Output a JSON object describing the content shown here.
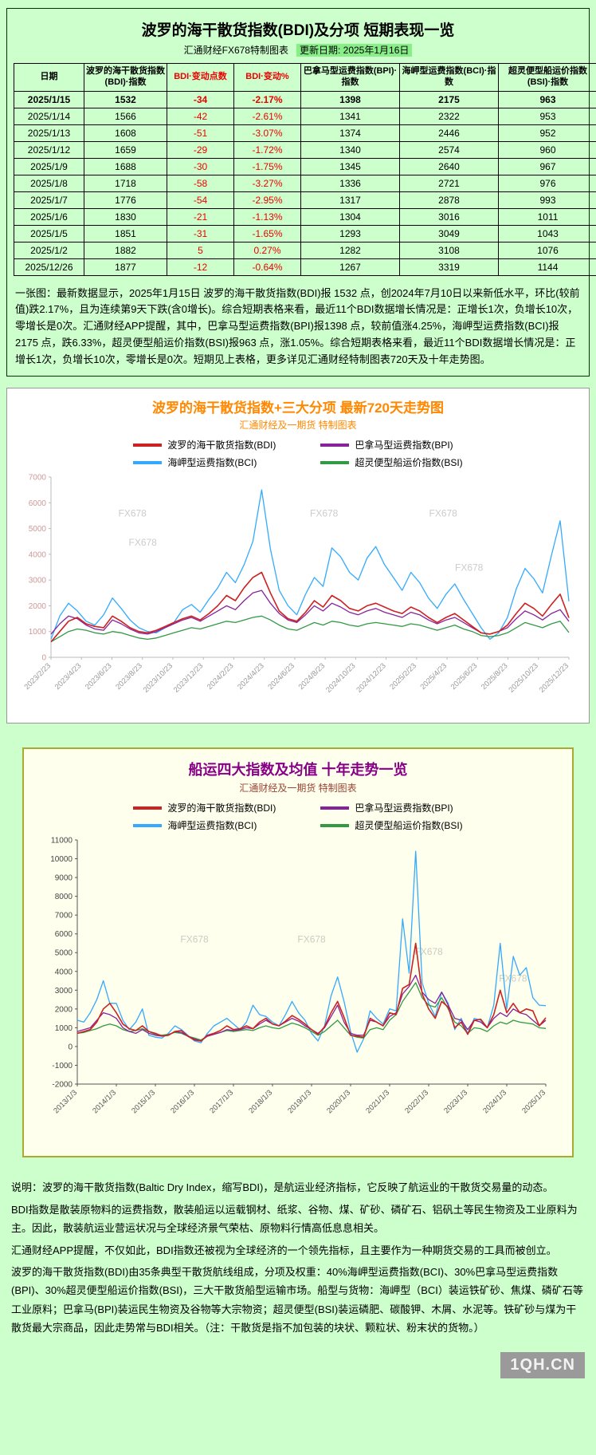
{
  "colors": {
    "page_bg": "#ccffcc",
    "negative_red": "#ee0000",
    "update_highlight": "#88ee88",
    "bdi_line": "#cc2222",
    "bpi_line": "#882299",
    "bci_line": "#33aaff",
    "bsi_line": "#339944",
    "chart1_title": "#ff8800",
    "chart2_title": "#880088",
    "chart2_subtitle": "#994433",
    "panel2_border": "#aaaa33",
    "panel2_bg": "#ffffee"
  },
  "top_panel": {
    "title": "波罗的海干散货指数(BDI)及分项 短期表现一览",
    "source": "汇通财经FX678特制图表",
    "update_date": "更新日期: 2025年1月16日",
    "table": {
      "headers": [
        "日期",
        "波罗的海干散货指数(BDI)·指数",
        "BDI·变动点数",
        "BDI·变动%",
        "巴拿马型运费指数(BPI)·指数",
        "海岬型运费指数(BCI)·指数",
        "超灵便型船运价指数(BSI)·指数"
      ],
      "rows": [
        [
          "2025/1/15",
          "1532",
          "-34",
          "-2.17%",
          "1398",
          "2175",
          "963"
        ],
        [
          "2025/1/14",
          "1566",
          "-42",
          "-2.61%",
          "1341",
          "2322",
          "953"
        ],
        [
          "2025/1/13",
          "1608",
          "-51",
          "-3.07%",
          "1374",
          "2446",
          "952"
        ],
        [
          "2025/1/12",
          "1659",
          "-29",
          "-1.72%",
          "1340",
          "2574",
          "960"
        ],
        [
          "2025/1/9",
          "1688",
          "-30",
          "-1.75%",
          "1345",
          "2640",
          "967"
        ],
        [
          "2025/1/8",
          "1718",
          "-58",
          "-3.27%",
          "1336",
          "2721",
          "976"
        ],
        [
          "2025/1/7",
          "1776",
          "-54",
          "-2.95%",
          "1317",
          "2878",
          "993"
        ],
        [
          "2025/1/6",
          "1830",
          "-21",
          "-1.13%",
          "1304",
          "3016",
          "1011"
        ],
        [
          "2025/1/5",
          "1851",
          "-31",
          "-1.65%",
          "1293",
          "3049",
          "1043"
        ],
        [
          "2025/1/2",
          "1882",
          "5",
          "0.27%",
          "1282",
          "3108",
          "1076"
        ],
        [
          "2025/12/26",
          "1877",
          "-12",
          "-0.64%",
          "1267",
          "3319",
          "1144"
        ]
      ]
    },
    "summary": "一张图：最新数据显示，2025年1月15日 波罗的海干散货指数(BDI)报 1532 点，创2024年7月10日以来新低水平，环比(较前值)跌2.17%，且为连续第9天下跌(含0增长)。综合短期表格来看，最近11个BDI数据增长情况是：正增长1次，负增长10次，零增长是0次。汇通财经APP提醒，其中，巴拿马型运费指数(BPI)报1398 点，较前值涨4.25%，海岬型运费指数(BCI)报2175 点，跌6.33%，超灵便型船运价指数(BSI)报963 点，涨1.05%。综合短期表格来看，最近11个BDI数据增长情况是：正增长1次，负增长10次，零增长是0次。短期见上表格，更多详见汇通财经特制图表720天及十年走势图。"
  },
  "chart_data": [
    {
      "type": "line",
      "title": "波罗的海干散货指数+三大分项  最新720天走势图",
      "subtitle": "汇通财经及一期货 特制图表",
      "xlabel": "",
      "ylabel": "",
      "ylim": [
        0,
        7000
      ],
      "ytick_step": 1000,
      "grid": false,
      "legend_position": "top",
      "watermark_text": "FX678",
      "watermarks": [
        {
          "x": 0.13,
          "y": 0.22
        },
        {
          "x": 0.5,
          "y": 0.22
        },
        {
          "x": 0.73,
          "y": 0.22
        },
        {
          "x": 0.15,
          "y": 0.38
        },
        {
          "x": 0.78,
          "y": 0.52
        }
      ],
      "x_labels": [
        "2023/2/23",
        "2023/4/23",
        "2023/6/23",
        "2023/8/23",
        "2023/10/23",
        "2023/12/23",
        "2024/2/23",
        "2024/4/23",
        "2024/6/23",
        "2024/8/23",
        "2024/10/23",
        "2024/12/23",
        "2025/2/23",
        "2025/4/23",
        "2025/6/23",
        "2025/8/23",
        "2025/10/23",
        "2025/12/23"
      ],
      "series": [
        {
          "name": "波罗的海干散货指数(BDI)",
          "color": "#cc2222",
          "values": [
            600,
            1000,
            1400,
            1550,
            1300,
            1200,
            1150,
            1600,
            1400,
            1150,
            1000,
            950,
            1050,
            1200,
            1350,
            1500,
            1600,
            1450,
            1700,
            2000,
            2400,
            2200,
            2700,
            3100,
            3300,
            2500,
            1800,
            1500,
            1400,
            1750,
            2200,
            1950,
            2400,
            2200,
            1900,
            1800,
            2000,
            2100,
            1950,
            1800,
            1700,
            1950,
            1800,
            1550,
            1350,
            1550,
            1700,
            1450,
            1200,
            950,
            900,
            1000,
            1250,
            1700,
            2100,
            1900,
            1600,
            2050,
            2450,
            1532
          ]
        },
        {
          "name": "巴拿马型运费指数(BPI)",
          "color": "#882299",
          "values": [
            900,
            1300,
            1600,
            1500,
            1250,
            1100,
            1050,
            1450,
            1300,
            1100,
            950,
            900,
            1000,
            1150,
            1300,
            1450,
            1550,
            1400,
            1600,
            1800,
            2000,
            1850,
            2200,
            2500,
            2600,
            2100,
            1700,
            1450,
            1350,
            1650,
            2000,
            1800,
            2100,
            1950,
            1750,
            1650,
            1800,
            1900,
            1750,
            1650,
            1550,
            1750,
            1650,
            1450,
            1300,
            1450,
            1550,
            1350,
            1150,
            950,
            900,
            1000,
            1150,
            1500,
            1800,
            1650,
            1450,
            1700,
            1850,
            1398
          ]
        },
        {
          "name": "海岬型运费指数(BCI)",
          "color": "#33aaff",
          "values": [
            700,
            1600,
            2100,
            1800,
            1400,
            1250,
            1650,
            2300,
            1900,
            1450,
            1150,
            1000,
            950,
            1150,
            1350,
            1850,
            2050,
            1750,
            2250,
            2700,
            3300,
            2900,
            3600,
            4500,
            6500,
            4200,
            2600,
            2000,
            1650,
            2450,
            3100,
            2750,
            4250,
            3900,
            3300,
            3000,
            3850,
            4300,
            3600,
            3100,
            2600,
            3300,
            2900,
            2300,
            1900,
            2450,
            2850,
            2250,
            1700,
            1150,
            700,
            950,
            1550,
            2650,
            3450,
            3050,
            2500,
            3950,
            5300,
            2175
          ]
        },
        {
          "name": "超灵便型船运价指数(BSI)",
          "color": "#339944",
          "values": [
            600,
            800,
            1000,
            1100,
            1050,
            950,
            900,
            1000,
            950,
            850,
            750,
            700,
            750,
            850,
            950,
            1050,
            1150,
            1100,
            1200,
            1300,
            1400,
            1350,
            1450,
            1550,
            1600,
            1450,
            1250,
            1100,
            1050,
            1200,
            1350,
            1250,
            1400,
            1350,
            1250,
            1200,
            1300,
            1350,
            1300,
            1250,
            1200,
            1300,
            1250,
            1150,
            1050,
            1150,
            1250,
            1100,
            1000,
            850,
            800,
            850,
            950,
            1150,
            1350,
            1250,
            1150,
            1300,
            1400,
            963
          ]
        }
      ]
    },
    {
      "type": "line",
      "title": "船运四大指数及均值 十年走势一览",
      "subtitle": "汇通财经及一期货 特制图表",
      "xlabel": "",
      "ylabel": "",
      "ylim": [
        -2000,
        11000
      ],
      "ytick_step": 1000,
      "grid": false,
      "legend_position": "top",
      "watermark_text": "FX678",
      "watermarks": [
        {
          "x": 0.22,
          "y": 0.42
        },
        {
          "x": 0.47,
          "y": 0.42
        },
        {
          "x": 0.72,
          "y": 0.47
        },
        {
          "x": 0.9,
          "y": 0.58
        }
      ],
      "x_labels": [
        "2013/1/3",
        "2014/1/3",
        "2015/1/3",
        "2016/1/3",
        "2017/1/3",
        "2018/1/3",
        "2019/1/3",
        "2020/1/3",
        "2021/1/3",
        "2022/1/3",
        "2023/1/3",
        "2024/1/3",
        "2025/1/3"
      ],
      "series": [
        {
          "name": "波罗的海干散货指数(BDI)",
          "color": "#cc2222",
          "values": [
            700,
            800,
            900,
            1300,
            2000,
            2300,
            1800,
            1200,
            950,
            850,
            1100,
            800,
            700,
            560,
            600,
            800,
            850,
            550,
            350,
            290,
            600,
            700,
            850,
            1100,
            900,
            950,
            1100,
            950,
            1300,
            1500,
            1200,
            1100,
            1350,
            1650,
            1450,
            1200,
            900,
            650,
            1050,
            1800,
            2400,
            1550,
            600,
            550,
            500,
            1500,
            1300,
            1100,
            1800,
            1700,
            3100,
            3300,
            5500,
            2800,
            2000,
            1500,
            2400,
            2100,
            1000,
            1300,
            650,
            1400,
            1450,
            1000,
            1700,
            3000,
            1800,
            2300,
            1800,
            2000,
            1900,
            1100,
            1532
          ]
        },
        {
          "name": "巴拿马型运费指数(BPI)",
          "color": "#882299",
          "values": [
            800,
            900,
            1000,
            1400,
            1800,
            1700,
            1500,
            1000,
            800,
            700,
            900,
            700,
            600,
            550,
            600,
            800,
            750,
            550,
            400,
            300,
            550,
            650,
            750,
            900,
            850,
            900,
            1000,
            950,
            1200,
            1400,
            1200,
            1100,
            1300,
            1500,
            1350,
            1100,
            900,
            700,
            1000,
            1600,
            2200,
            1300,
            700,
            600,
            600,
            1400,
            1300,
            1100,
            1600,
            1800,
            2800,
            3200,
            3800,
            2900,
            2500,
            2300,
            2900,
            2200,
            1500,
            1400,
            900,
            1400,
            1300,
            1000,
            1500,
            1800,
            1600,
            2000,
            1800,
            1700,
            1400,
            1100,
            1398
          ]
        },
        {
          "name": "海岬型运费指数(BCI)",
          "color": "#33aaff",
          "values": [
            1400,
            1300,
            1800,
            2500,
            3500,
            2300,
            2300,
            1400,
            900,
            1300,
            2000,
            600,
            500,
            450,
            700,
            1100,
            900,
            600,
            300,
            200,
            700,
            1100,
            1300,
            1500,
            1200,
            900,
            1300,
            2200,
            1700,
            1600,
            1300,
            1100,
            1700,
            2400,
            1800,
            1400,
            700,
            300,
            1100,
            2700,
            3700,
            2400,
            800,
            -300,
            400,
            1900,
            1500,
            1200,
            2000,
            1900,
            6800,
            3900,
            10400,
            3400,
            2300,
            1600,
            2900,
            2300,
            900,
            1500,
            700,
            1500,
            1400,
            1000,
            2200,
            5500,
            2000,
            4800,
            3800,
            4200,
            2600,
            2200,
            2175
          ]
        },
        {
          "name": "超灵便型船运价指数(BSI)",
          "color": "#339944",
          "values": [
            700,
            750,
            850,
            950,
            1100,
            1200,
            1100,
            900,
            800,
            850,
            950,
            800,
            650,
            600,
            650,
            750,
            700,
            550,
            450,
            350,
            550,
            650,
            750,
            850,
            800,
            850,
            900,
            850,
            1000,
            1100,
            1000,
            950,
            1100,
            1250,
            1150,
            1000,
            800,
            600,
            800,
            1100,
            1400,
            1000,
            600,
            500,
            450,
            900,
            1000,
            900,
            1400,
            1700,
            2400,
            2900,
            3400,
            2600,
            2200,
            2100,
            2600,
            2000,
            1300,
            1100,
            700,
            1000,
            950,
            800,
            1100,
            1300,
            1200,
            1400,
            1300,
            1250,
            1200,
            1000,
            963
          ]
        }
      ]
    }
  ],
  "description": {
    "p1": "说明：波罗的海干散货指数(Baltic Dry Index，缩写BDI)，是航运业经济指标，它反映了航运业的干散货交易量的动态。",
    "p2": "BDI指数是散装原物料的运费指数，散装船运以运载钢材、纸浆、谷物、煤、矿砂、磷矿石、铝矾土等民生物资及工业原料为主。因此，散装航运业营运状况与全球经济景气荣枯、原物料行情高低息息相关。",
    "p3": "汇通财经APP提醒，不仅如此，BDI指数还被视为全球经济的一个领先指标，且主要作为一种期货交易的工具而被创立。",
    "p4": "波罗的海干散货指数(BDI)由35条典型干散货航线组成，分项及权重：40%海岬型运费指数(BCI)、30%巴拿马型运费指数(BPI)、30%超灵便型船运价指数(BSI)，三大干散货船型运输市场。船型与货物：海岬型（BCI）装运铁矿砂、焦煤、磷矿石等工业原料；巴拿马(BPI)装运民生物资及谷物等大宗物资；超灵便型(BSI)装运磷肥、碳酸钾、木屑、水泥等。铁矿砂与煤为干散货最大宗商品，因此走势常与BDI相关。（注：干散货是指不加包装的块状、颗粒状、粉末状的货物。）"
  },
  "footer": {
    "watermark": "1QH.CN"
  }
}
